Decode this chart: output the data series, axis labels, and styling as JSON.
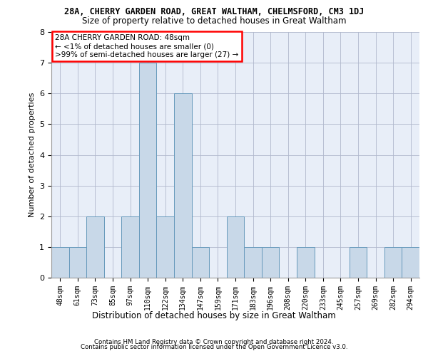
{
  "title_line1": "28A, CHERRY GARDEN ROAD, GREAT WALTHAM, CHELMSFORD, CM3 1DJ",
  "title_line2": "Size of property relative to detached houses in Great Waltham",
  "xlabel": "Distribution of detached houses by size in Great Waltham",
  "ylabel": "Number of detached properties",
  "categories": [
    "48sqm",
    "61sqm",
    "73sqm",
    "85sqm",
    "97sqm",
    "110sqm",
    "122sqm",
    "134sqm",
    "147sqm",
    "159sqm",
    "171sqm",
    "183sqm",
    "196sqm",
    "208sqm",
    "220sqm",
    "233sqm",
    "245sqm",
    "257sqm",
    "269sqm",
    "282sqm",
    "294sqm"
  ],
  "values": [
    1,
    1,
    2,
    0,
    2,
    7,
    2,
    6,
    1,
    0,
    2,
    1,
    1,
    0,
    1,
    0,
    0,
    1,
    0,
    1,
    1
  ],
  "bar_color": "#c8d8e8",
  "bar_edge_color": "#6699bb",
  "ylim": [
    0,
    8
  ],
  "yticks": [
    0,
    1,
    2,
    3,
    4,
    5,
    6,
    7,
    8
  ],
  "grid_color": "#b0b8cc",
  "bg_color": "#e8eef8",
  "annotation_text": "28A CHERRY GARDEN ROAD: 48sqm\n← <1% of detached houses are smaller (0)\n>99% of semi-detached houses are larger (27) →",
  "annotation_box_color": "white",
  "annotation_box_edge_color": "red",
  "footer_line1": "Contains HM Land Registry data © Crown copyright and database right 2024.",
  "footer_line2": "Contains public sector information licensed under the Open Government Licence v3.0."
}
